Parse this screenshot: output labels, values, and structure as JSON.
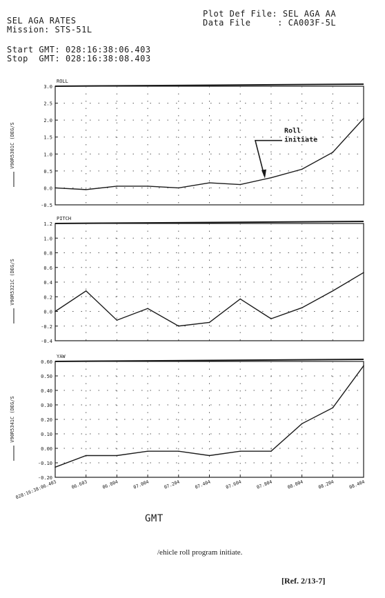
{
  "header": {
    "title": "SEL AGA RATES",
    "mission": "Mission: STS-51L",
    "start_gmt": "Start GMT: 028:16:38:06.403",
    "stop_gmt": "Stop  GMT: 028:16:38:08.403",
    "plot_def_file": "Plot Def File: SEL AGA AA",
    "data_file": "Data File     : CA003F-5L"
  },
  "chart_data": [
    {
      "type": "line",
      "title": "ROLL",
      "ylabel": "V90R5301C (DEG/S",
      "ylim": [
        -0.5,
        3.0
      ],
      "yticks": [
        "3.0",
        "2.5",
        "2.0",
        "1.5",
        "1.0",
        "0.5",
        "0.0",
        "-0.5"
      ],
      "x": [
        0,
        1,
        2,
        3,
        4,
        5,
        6,
        7,
        8,
        9,
        10
      ],
      "series": [
        {
          "values": [
            0.0,
            -0.05,
            0.05,
            0.05,
            0.0,
            0.15,
            0.1,
            0.3,
            0.55,
            1.05,
            2.05
          ]
        }
      ],
      "annotation": {
        "text_line1": "Roll",
        "text_line2": "initiate",
        "x": 6.8,
        "y": 0.28
      }
    },
    {
      "type": "line",
      "title": "PITCH",
      "ylabel": "V90R5321C (DEG/S",
      "ylim": [
        -0.4,
        1.2
      ],
      "yticks": [
        "1.2",
        "1.0",
        "0.8",
        "0.6",
        "0.4",
        "0.2",
        "0.0",
        "-0.2",
        "-0.4"
      ],
      "x": [
        0,
        1,
        2,
        3,
        4,
        5,
        6,
        7,
        8,
        9,
        10
      ],
      "series": [
        {
          "values": [
            0.0,
            0.28,
            -0.12,
            0.04,
            -0.2,
            -0.15,
            0.17,
            -0.1,
            0.05,
            0.28,
            0.53
          ]
        }
      ]
    },
    {
      "type": "line",
      "title": "YAW",
      "ylabel": "V90R5341C (DEG/S",
      "ylim": [
        -0.2,
        0.6
      ],
      "yticks": [
        "0.60",
        "0.50",
        "0.40",
        "0.30",
        "0.20",
        "0.10",
        "0.00",
        "-0.10",
        "-0.20"
      ],
      "x": [
        0,
        1,
        2,
        3,
        4,
        5,
        6,
        7,
        8,
        9,
        10
      ],
      "series": [
        {
          "values": [
            -0.13,
            -0.05,
            -0.05,
            -0.02,
            -0.02,
            -0.05,
            -0.02,
            -0.02,
            0.17,
            0.28,
            0.57
          ]
        }
      ]
    }
  ],
  "xaxis": {
    "ticklabels": [
      "028:16:38:06.403",
      "06.603",
      "06.804",
      "07.004",
      "07.204",
      "07.404",
      "07.604",
      "07.804",
      "08.004",
      "08.204",
      "08.404"
    ],
    "label": "GMT"
  },
  "caption": "/ehicle roll program initiate.",
  "reference": "[Ref. 2/13-7]"
}
